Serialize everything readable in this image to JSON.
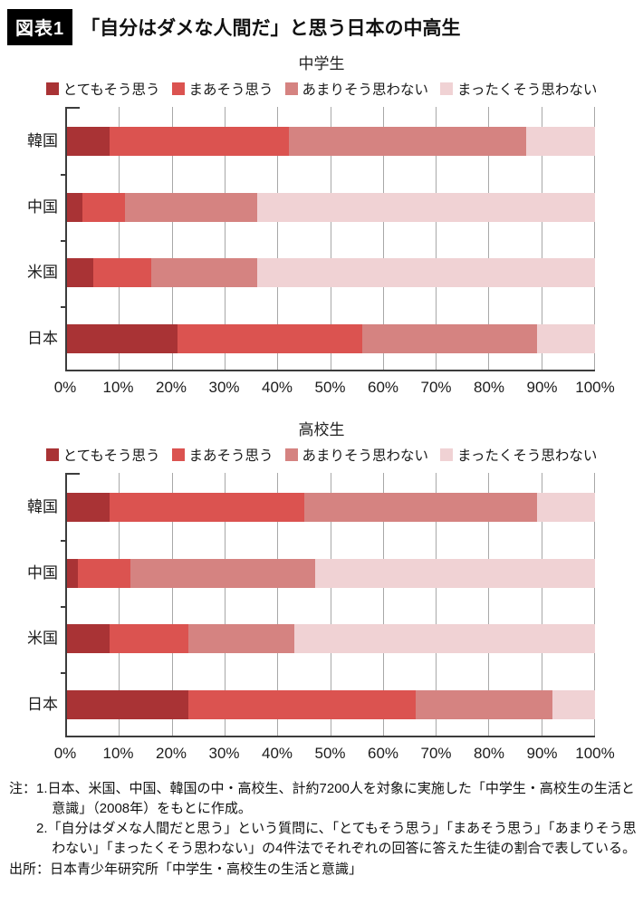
{
  "header": {
    "tag": "図表1",
    "title": "「自分はダメな人間だ」と思う日本の中高生"
  },
  "chart_data": [
    {
      "type": "bar",
      "variant": "stacked-horizontal",
      "title": "中学生",
      "categories": [
        "韓国",
        "中国",
        "米国",
        "日本"
      ],
      "series": [
        {
          "name": "とてもそう思う",
          "color": "#A93335",
          "values": [
            8,
            3,
            5,
            21
          ]
        },
        {
          "name": "まあそう思う",
          "color": "#DB5350",
          "values": [
            34,
            8,
            11,
            35
          ]
        },
        {
          "name": "あまりそう思わない",
          "color": "#D58381",
          "values": [
            45,
            25,
            20,
            33
          ]
        },
        {
          "name": "まったくそう思わない",
          "color": "#F0D2D4",
          "values": [
            13,
            64,
            64,
            11
          ]
        }
      ],
      "xlim": [
        0,
        100
      ],
      "x_ticks": [
        "0%",
        "10%",
        "20%",
        "30%",
        "40%",
        "50%",
        "60%",
        "70%",
        "80%",
        "90%",
        "100%"
      ],
      "grid": true,
      "legend_position": "top"
    },
    {
      "type": "bar",
      "variant": "stacked-horizontal",
      "title": "高校生",
      "categories": [
        "韓国",
        "中国",
        "米国",
        "日本"
      ],
      "series": [
        {
          "name": "とてもそう思う",
          "color": "#A93335",
          "values": [
            8,
            2,
            8,
            23
          ]
        },
        {
          "name": "まあそう思う",
          "color": "#DB5350",
          "values": [
            37,
            10,
            15,
            43
          ]
        },
        {
          "name": "あまりそう思わない",
          "color": "#D58381",
          "values": [
            44,
            35,
            20,
            26
          ]
        },
        {
          "name": "まったくそう思わない",
          "color": "#F0D2D4",
          "values": [
            11,
            53,
            57,
            8
          ]
        }
      ],
      "xlim": [
        0,
        100
      ],
      "x_ticks": [
        "0%",
        "10%",
        "20%",
        "30%",
        "40%",
        "50%",
        "60%",
        "70%",
        "80%",
        "90%",
        "100%"
      ],
      "grid": true,
      "legend_position": "top"
    }
  ],
  "notes": {
    "prefix": "注：",
    "items": [
      "1.日本、米国、中国、韓国の中・高校生、計約7200人を対象に実施した「中学生・高校生の生活と意識」（2008年）をもとに作成。",
      "2.「自分はダメな人間だと思う」という質問に、「とてもそう思う」「まあそう思う」「あまりそう思わない」「まったくそう思わない」の4件法でそれぞれの回答に答えた生徒の割合で表している。"
    ],
    "source": "出所：日本青少年研究所「中学生・高校生の生活と意識」"
  },
  "colors": {
    "axis": "#3c3c3c",
    "gridline": "#a8a8a8",
    "tag_background": "#000000"
  }
}
